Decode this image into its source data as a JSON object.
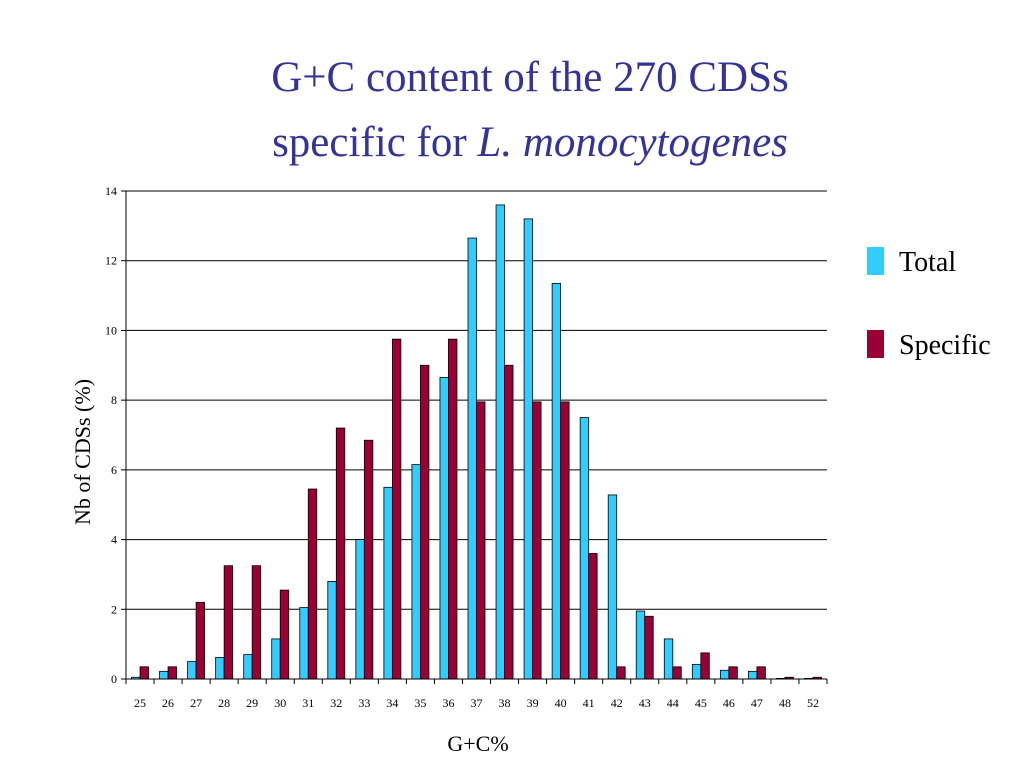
{
  "title": {
    "line1": "G+C content of the 270 CDSs",
    "line2_prefix": "specific for",
    "line2_species": "L. monocytogenes"
  },
  "colors": {
    "title": "#333399",
    "total": "#33ccff",
    "specific": "#990033"
  },
  "chart_data": {
    "type": "bar",
    "xlabel": "G+C%",
    "ylabel": "Nb of CDSs (%)",
    "ylim": [
      0,
      14
    ],
    "yticks": [
      0,
      2,
      4,
      6,
      8,
      10,
      12,
      14
    ],
    "grid": true,
    "legend_position": "right",
    "categories": [
      "25",
      "26",
      "27",
      "28",
      "29",
      "30",
      "31",
      "32",
      "33",
      "34",
      "35",
      "36",
      "37",
      "38",
      "39",
      "40",
      "41",
      "42",
      "43",
      "44",
      "45",
      "46",
      "47",
      "48",
      "52"
    ],
    "series": [
      {
        "name": "Total",
        "color": "#33ccff",
        "values": [
          0.05,
          0.22,
          0.5,
          0.62,
          0.7,
          1.15,
          2.05,
          2.8,
          4.0,
          5.5,
          6.15,
          8.65,
          12.65,
          13.6,
          13.2,
          11.35,
          7.5,
          5.28,
          1.95,
          1.15,
          0.42,
          0.25,
          0.22,
          0.0,
          0.0
        ]
      },
      {
        "name": "Specific",
        "color": "#990033",
        "values": [
          0.35,
          0.35,
          2.2,
          3.25,
          3.25,
          2.55,
          5.45,
          7.2,
          6.85,
          9.75,
          9.0,
          9.75,
          7.95,
          9.0,
          7.95,
          7.95,
          3.6,
          0.35,
          1.8,
          0.35,
          0.75,
          0.35,
          0.35,
          0.05,
          0.05
        ]
      }
    ]
  }
}
